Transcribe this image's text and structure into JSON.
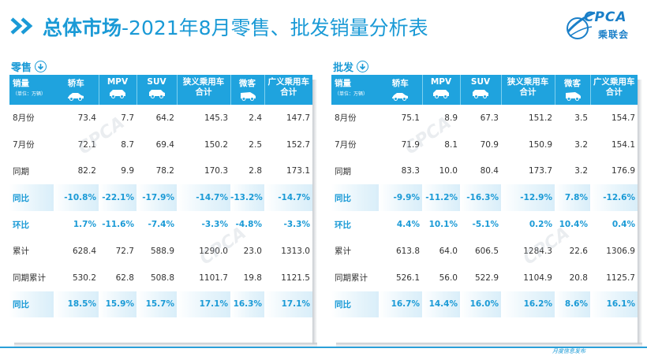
{
  "header": {
    "title_bold": "总体市场",
    "title_rest": "-2021年8月零售、批发销量分析表",
    "logo_text": "CPCA",
    "logo_sub": "乘联会",
    "logo_icon": "globe-swoosh-icon"
  },
  "left": {
    "section_label": "零售",
    "section_icon": "down-arrow-circle-icon",
    "head_first": "销量",
    "head_unit": "（单位：万辆）",
    "columns": [
      {
        "label": "轿车",
        "icon": "sedan-icon"
      },
      {
        "label": "MPV",
        "icon": "mpv-icon"
      },
      {
        "label": "SUV",
        "icon": "suv-icon"
      },
      {
        "label": "狭义乘用车合计",
        "line1": "狭义乘用车",
        "line2": "合计"
      },
      {
        "label": "微客",
        "icon": "minivan-icon"
      },
      {
        "label": "广义乘用车合计",
        "line1": "广义乘用车",
        "line2": "合计"
      }
    ],
    "rows": [
      {
        "label": "8月份",
        "values": [
          "73.4",
          "7.7",
          "64.2",
          "145.3",
          "2.4",
          "147.7"
        ]
      },
      {
        "label": "7月份",
        "values": [
          "72.1",
          "8.7",
          "69.4",
          "150.2",
          "2.5",
          "152.7"
        ]
      },
      {
        "label": "同期",
        "values": [
          "82.2",
          "9.9",
          "78.2",
          "170.3",
          "2.8",
          "173.1"
        ]
      },
      {
        "label": "同比",
        "values": [
          "-10.8%",
          "-22.1%",
          "-17.9%",
          "-14.7%",
          "-13.2%",
          "-14.7%"
        ],
        "pct": true,
        "shade": true
      },
      {
        "label": "环比",
        "values": [
          "1.7%",
          "-11.6%",
          "-7.4%",
          "-3.3%",
          "-4.8%",
          "-3.3%"
        ],
        "pct": true
      },
      {
        "label": "累计",
        "values": [
          "628.4",
          "72.7",
          "588.9",
          "1290.0",
          "23.0",
          "1313.0"
        ]
      },
      {
        "label": "同期累计",
        "values": [
          "530.2",
          "62.8",
          "508.8",
          "1101.7",
          "19.8",
          "1121.5"
        ]
      },
      {
        "label": "同比",
        "values": [
          "18.5%",
          "15.9%",
          "15.7%",
          "17.1%",
          "16.3%",
          "17.1%"
        ],
        "pct": true,
        "shade": true
      }
    ]
  },
  "right": {
    "section_label": "批发",
    "section_icon": "down-arrow-circle-icon",
    "head_first": "销量",
    "head_unit": "（单位：万辆）",
    "columns": [
      {
        "label": "轿车",
        "icon": "sedan-icon"
      },
      {
        "label": "MPV",
        "icon": "mpv-icon"
      },
      {
        "label": "SUV",
        "icon": "suv-icon"
      },
      {
        "label": "狭义乘用车合计",
        "line1": "狭义乘用车",
        "line2": "合计"
      },
      {
        "label": "微客",
        "icon": "minivan-icon"
      },
      {
        "label": "广义乘用车合计",
        "line1": "广义乘用车",
        "line2": "合计"
      }
    ],
    "rows": [
      {
        "label": "8月份",
        "values": [
          "75.1",
          "8.9",
          "67.3",
          "151.2",
          "3.5",
          "154.7"
        ]
      },
      {
        "label": "7月份",
        "values": [
          "71.9",
          "8.1",
          "70.9",
          "150.9",
          "3.2",
          "154.1"
        ]
      },
      {
        "label": "同期",
        "values": [
          "83.3",
          "10.0",
          "80.4",
          "173.7",
          "3.2",
          "176.9"
        ]
      },
      {
        "label": "同比",
        "values": [
          "-9.9%",
          "-11.2%",
          "-16.3%",
          "-12.9%",
          "7.8%",
          "-12.6%"
        ],
        "pct": true,
        "shade": true
      },
      {
        "label": "环比",
        "values": [
          "4.4%",
          "10.1%",
          "-5.1%",
          "0.2%",
          "10.4%",
          "0.4%"
        ],
        "pct": true
      },
      {
        "label": "累计",
        "values": [
          "613.8",
          "64.0",
          "606.5",
          "1284.3",
          "22.6",
          "1306.9"
        ]
      },
      {
        "label": "同期累计",
        "values": [
          "526.1",
          "56.0",
          "522.9",
          "1104.9",
          "20.8",
          "1125.7"
        ]
      },
      {
        "label": "同比",
        "values": [
          "16.7%",
          "14.4%",
          "16.0%",
          "16.2%",
          "8.6%",
          "16.1%"
        ],
        "pct": true,
        "shade": true
      }
    ]
  },
  "footer": {
    "text": "月度信息发布"
  },
  "colors": {
    "accent": "#1fa3de",
    "title": "#1a9ad6"
  }
}
